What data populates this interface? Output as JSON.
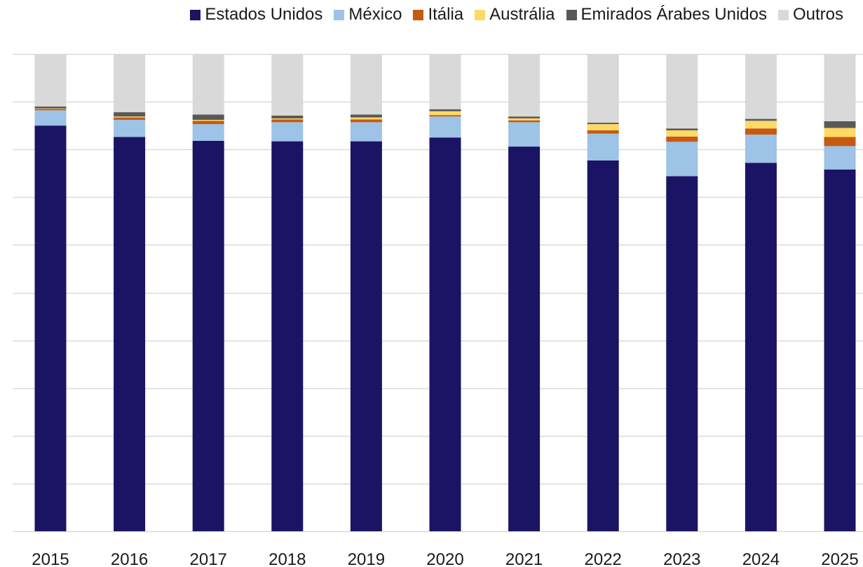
{
  "chart_data": {
    "type": "bar",
    "stacked": true,
    "normalized": true,
    "categories": [
      "2015",
      "2016",
      "2017",
      "2018",
      "2019",
      "2020",
      "2021",
      "2022",
      "2023",
      "2024",
      "2025"
    ],
    "series": [
      {
        "name": "Estados Unidos",
        "color": "#1b1464",
        "values": [
          85.0,
          82.6,
          81.8,
          81.7,
          81.7,
          82.5,
          80.6,
          77.7,
          74.4,
          77.2,
          75.8
        ]
      },
      {
        "name": "México",
        "color": "#9dc3e6",
        "values": [
          3.2,
          3.6,
          3.5,
          4.0,
          4.0,
          4.4,
          5.1,
          5.6,
          7.2,
          5.9,
          4.9
        ]
      },
      {
        "name": "Itália",
        "color": "#c55a11",
        "values": [
          0.3,
          0.5,
          0.7,
          0.6,
          0.6,
          0.3,
          0.4,
          0.7,
          1.1,
          1.3,
          1.9
        ]
      },
      {
        "name": "Austrália",
        "color": "#ffd966",
        "values": [
          0.1,
          0.2,
          0.2,
          0.2,
          0.4,
          0.8,
          0.4,
          1.3,
          1.3,
          1.6,
          1.9
        ]
      },
      {
        "name": "Emirados Árabes Unidos",
        "color": "#595959",
        "values": [
          0.4,
          0.9,
          1.1,
          0.6,
          0.6,
          0.4,
          0.4,
          0.3,
          0.4,
          0.4,
          1.4
        ]
      },
      {
        "name": "Outros",
        "color": "#d9d9d9",
        "values": [
          11.0,
          12.2,
          12.7,
          12.9,
          12.7,
          11.6,
          13.1,
          14.4,
          15.6,
          13.6,
          14.1
        ]
      }
    ],
    "ylim": [
      0,
      100
    ],
    "y_ticks": [
      0,
      10,
      20,
      30,
      40,
      50,
      60,
      70,
      80,
      90,
      100
    ],
    "y_tick_labels_visible": false,
    "grid": true,
    "legend_position": "top-right",
    "title": "",
    "xlabel": "",
    "ylabel": ""
  }
}
